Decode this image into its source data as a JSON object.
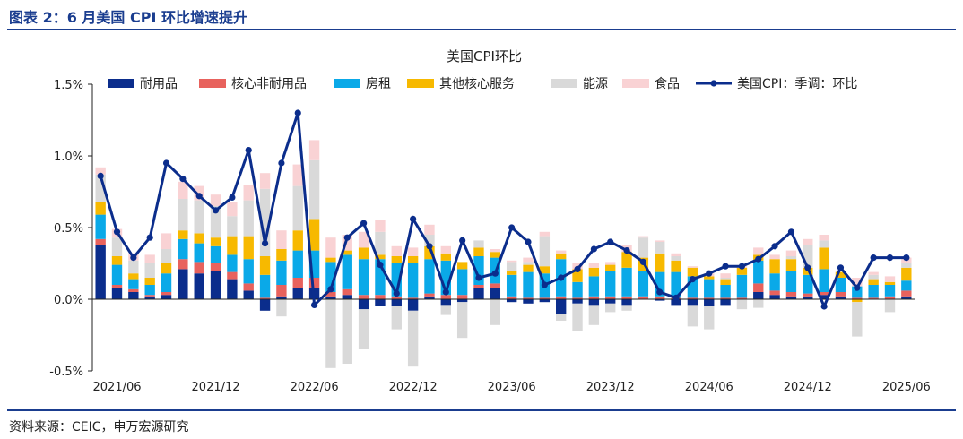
{
  "header": {
    "title": "图表 2：6 月美国 CPI 环比增速提升"
  },
  "footer": {
    "source": "资料来源：CEIC，申万宏源研究"
  },
  "colors": {
    "durable": "#0b2d8c",
    "core_nondurable": "#e8625d",
    "shelter": "#0aa9e8",
    "other_core_services": "#f7b900",
    "energy": "#d9d9d9",
    "food": "#f9d2d4",
    "cpi_line": "#0b2d8c",
    "accent": "#1a3d8f"
  },
  "chart_data": {
    "type": "bar",
    "stacked": true,
    "title": "美国CPI环比",
    "xlabel": "",
    "ylabel": "",
    "ylim": [
      -0.5,
      1.5
    ],
    "y_ticks": [
      "1.5%",
      "1.0%",
      "0.5%",
      "0.0%",
      "-0.5%"
    ],
    "x_tick_labels": [
      "2021/06",
      "2021/12",
      "2022/06",
      "2022/12",
      "2023/06",
      "2023/12",
      "2024/06",
      "2024/12",
      "2025/06"
    ],
    "grid": false,
    "legend_position": "top",
    "categories": [
      "2021/05",
      "2021/06",
      "2021/07",
      "2021/08",
      "2021/09",
      "2021/10",
      "2021/11",
      "2021/12",
      "2022/01",
      "2022/02",
      "2022/03",
      "2022/04",
      "2022/05",
      "2022/06",
      "2022/07",
      "2022/08",
      "2022/09",
      "2022/10",
      "2022/11",
      "2022/12",
      "2023/01",
      "2023/02",
      "2023/03",
      "2023/04",
      "2023/05",
      "2023/06",
      "2023/07",
      "2023/08",
      "2023/09",
      "2023/10",
      "2023/11",
      "2023/12",
      "2024/01",
      "2024/02",
      "2024/03",
      "2024/04",
      "2024/05",
      "2024/06",
      "2024/07",
      "2024/08",
      "2024/09",
      "2024/10",
      "2024/11",
      "2024/12",
      "2025/01",
      "2025/02",
      "2025/03",
      "2025/04",
      "2025/05",
      "2025/06"
    ],
    "series": [
      {
        "name": "耐用品",
        "values": [
          0.38,
          0.08,
          0.05,
          0.02,
          0.03,
          0.21,
          0.18,
          0.2,
          0.14,
          0.06,
          -0.08,
          0.02,
          0.08,
          0.08,
          0.02,
          0.03,
          -0.07,
          -0.05,
          -0.05,
          -0.08,
          0.02,
          -0.04,
          -0.02,
          0.08,
          0.08,
          -0.02,
          -0.03,
          -0.02,
          -0.1,
          -0.03,
          -0.04,
          -0.03,
          -0.04,
          0.0,
          -0.01,
          -0.04,
          -0.04,
          -0.05,
          -0.04,
          0.0,
          0.05,
          0.03,
          0.02,
          0.02,
          0.03,
          0.02,
          0.0,
          0.0,
          0.0,
          0.02
        ]
      },
      {
        "name": "核心非耐用品",
        "values": [
          0.04,
          0.02,
          0.02,
          0.01,
          0.02,
          0.07,
          0.08,
          0.05,
          0.05,
          0.05,
          0.01,
          0.08,
          0.07,
          0.07,
          0.03,
          0.04,
          0.03,
          0.03,
          0.02,
          0.01,
          0.02,
          0.03,
          0.03,
          0.02,
          0.03,
          0.02,
          0.01,
          0.01,
          0.02,
          0.01,
          0.02,
          0.02,
          0.02,
          0.02,
          0.02,
          0.01,
          0.01,
          0.01,
          0.01,
          0.01,
          0.06,
          0.03,
          0.03,
          0.02,
          0.02,
          0.03,
          0.01,
          0.01,
          0.02,
          0.04
        ]
      },
      {
        "name": "房租",
        "values": [
          0.17,
          0.14,
          0.07,
          0.07,
          0.13,
          0.14,
          0.13,
          0.12,
          0.12,
          0.17,
          0.16,
          0.17,
          0.19,
          0.19,
          0.21,
          0.24,
          0.25,
          0.25,
          0.23,
          0.24,
          0.24,
          0.24,
          0.18,
          0.2,
          0.18,
          0.15,
          0.18,
          0.17,
          0.26,
          0.11,
          0.14,
          0.18,
          0.2,
          0.18,
          0.17,
          0.18,
          0.15,
          0.13,
          0.09,
          0.16,
          0.16,
          0.12,
          0.15,
          0.13,
          0.16,
          0.1,
          0.08,
          0.09,
          0.08,
          0.07
        ]
      },
      {
        "name": "其他核心服务",
        "values": [
          0.09,
          0.06,
          0.04,
          0.05,
          0.07,
          0.06,
          0.07,
          0.06,
          0.13,
          0.16,
          0.13,
          0.08,
          0.14,
          0.22,
          0.03,
          0.03,
          0.08,
          0.03,
          0.05,
          0.05,
          0.09,
          0.05,
          0.05,
          0.06,
          0.04,
          0.03,
          0.05,
          0.05,
          0.04,
          0.09,
          0.06,
          0.04,
          0.11,
          0.09,
          0.13,
          0.08,
          0.06,
          0.02,
          0.04,
          0.05,
          0.04,
          0.1,
          0.08,
          0.05,
          0.15,
          0.04,
          -0.02,
          0.04,
          0.02,
          0.09
        ]
      },
      {
        "name": "能源",
        "values": [
          0.19,
          0.13,
          0.09,
          0.1,
          0.1,
          0.22,
          0.23,
          0.22,
          0.14,
          0.25,
          0.47,
          -0.12,
          0.31,
          0.41,
          -0.48,
          -0.45,
          -0.28,
          0.16,
          -0.16,
          -0.39,
          0.08,
          -0.07,
          -0.25,
          0.05,
          -0.18,
          0.06,
          0.02,
          0.21,
          -0.05,
          -0.19,
          -0.14,
          -0.06,
          -0.04,
          0.14,
          0.08,
          0.03,
          -0.15,
          -0.16,
          0.01,
          -0.07,
          -0.06,
          0.0,
          0.02,
          0.16,
          0.05,
          0.0,
          -0.24,
          0.03,
          -0.09,
          0.03
        ]
      },
      {
        "name": "食品",
        "values": [
          0.05,
          0.06,
          0.05,
          0.06,
          0.11,
          0.12,
          0.1,
          0.08,
          0.1,
          0.11,
          0.11,
          0.13,
          0.15,
          0.14,
          0.14,
          0.11,
          0.11,
          0.08,
          0.07,
          0.06,
          0.07,
          0.05,
          0.0,
          0.0,
          0.02,
          0.01,
          0.03,
          0.03,
          0.02,
          0.04,
          0.03,
          0.02,
          0.05,
          0.01,
          0.01,
          0.02,
          0.01,
          0.02,
          0.03,
          0.01,
          0.05,
          0.03,
          0.04,
          0.04,
          0.04,
          0.0,
          0.06,
          0.02,
          0.04,
          0.04
        ]
      },
      {
        "name": "美国CPI：季调：环比",
        "kind": "line",
        "values": [
          0.86,
          0.47,
          0.29,
          0.43,
          0.95,
          0.84,
          0.72,
          0.62,
          0.71,
          1.04,
          0.39,
          0.95,
          1.3,
          -0.04,
          0.07,
          0.43,
          0.53,
          0.24,
          0.04,
          0.56,
          0.37,
          0.05,
          0.41,
          0.15,
          0.18,
          0.5,
          0.4,
          0.1,
          0.15,
          0.21,
          0.35,
          0.4,
          0.34,
          0.26,
          0.05,
          0.01,
          0.14,
          0.18,
          0.23,
          0.23,
          0.28,
          0.37,
          0.47,
          0.22,
          -0.05,
          0.22,
          0.08,
          0.29,
          0.29,
          0.29
        ]
      }
    ]
  }
}
